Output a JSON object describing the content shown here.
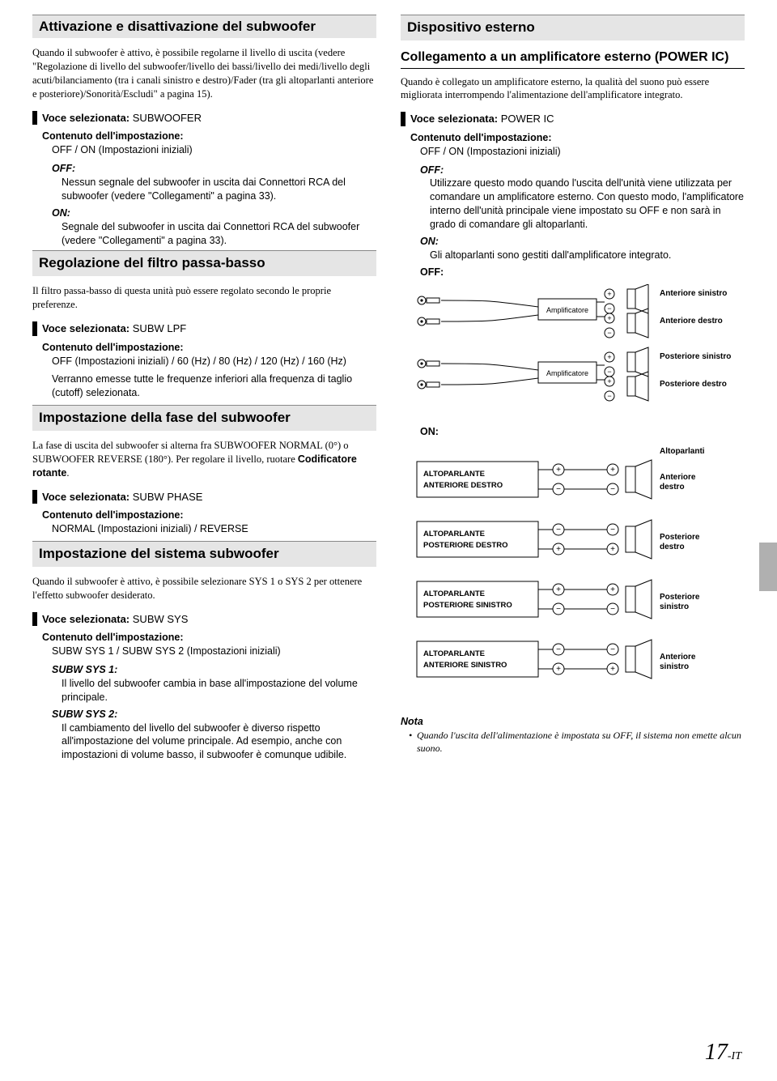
{
  "left": {
    "h1": "Attivazione e disattivazione del subwoofer",
    "p1": "Quando il subwoofer è attivo, è possibile regolarne il livello di uscita (vedere \"Regolazione di livello del subwoofer/livello dei bassi/livello dei medi/livello degli acuti/bilanciamento (tra i canali sinistro e destro)/Fader (tra gli altoparlanti anteriore e posteriore)/Sonorità/Escludi\" a pagina 15).",
    "v1": "Voce selezionata:",
    "v1name": "SUBWOOFER",
    "clabel": "Contenuto dell'impostazione:",
    "v1val": "OFF / ON (Impostazioni iniziali)",
    "off": "OFF:",
    "on": "ON:",
    "v1off": "Nessun segnale del subwoofer in uscita dai Connettori RCA del subwoofer (vedere \"Collegamenti\" a pagina 33).",
    "v1on": "Segnale del subwoofer in uscita dai Connettori RCA del subwoofer (vedere \"Collegamenti\" a pagina 33).",
    "h2": "Regolazione del filtro passa-basso",
    "p2": "Il filtro passa-basso di questa unità può essere regolato secondo le proprie preferenze.",
    "v2name": "SUBW LPF",
    "v2val": "OFF (Impostazioni iniziali) / 60 (Hz) / 80 (Hz) / 120 (Hz) / 160 (Hz)",
    "v2note": "Verranno emesse tutte le frequenze inferiori alla frequenza di taglio (cutoff) selezionata.",
    "h3": "Impostazione della fase del subwoofer",
    "p3a": "La fase di uscita del subwoofer si alterna fra SUBWOOFER NORMAL (0°) o SUBWOOFER REVERSE (180°). Per regolare il livello, ruotare ",
    "p3b": "Codificatore rotante",
    "v3name": "SUBW PHASE",
    "v3val": "NORMAL (Impostazioni iniziali) / REVERSE",
    "h4": "Impostazione del sistema subwoofer",
    "p4": "Quando il subwoofer è attivo, è possibile selezionare SYS 1 o SYS 2 per ottenere l'effetto subwoofer desiderato.",
    "v4name": "SUBW SYS",
    "v4val": "SUBW SYS 1 / SUBW SYS 2 (Impostazioni iniziali)",
    "v4a": "SUBW SYS 1:",
    "v4atext": "Il livello del subwoofer cambia in base all'impostazione del volume principale.",
    "v4b": "SUBW SYS 2:",
    "v4btext": "Il cambiamento del livello del subwoofer è diverso rispetto all'impostazione del volume principale. Ad esempio, anche con impostazioni di volume basso, il subwoofer è comunque udibile."
  },
  "right": {
    "h1": "Dispositivo esterno",
    "sub1": "Collegamento a un amplificatore esterno (POWER IC)",
    "p1": "Quando è collegato un amplificatore esterno, la qualità del suono può essere migliorata interrompendo l'alimentazione dell'amplificatore integrato.",
    "v1name": "POWER IC",
    "v1val": "OFF / ON (Impostazioni iniziali)",
    "v1off": "Utilizzare questo modo quando l'uscita dell'unità viene utilizzata per comandare un amplificatore esterno. Con questo modo, l'amplificatore interno dell'unità principale viene impostato su OFF e non sarà in grado di comandare gli altoparlanti.",
    "v1on": "Gli altoparlanti sono gestiti dall'amplificatore integrato.",
    "offlabel": "OFF:",
    "onlabel": "ON:",
    "nota": "Nota",
    "notatext": "Quando l'uscita dell'alimentazione è impostata su OFF, il sistema non emette alcun suono.",
    "diag_off": {
      "amp": "Amplificatore",
      "labels": [
        "Anteriore sinistro",
        "Anteriore destro",
        "Posteriore sinistro",
        "Posteriore destro"
      ]
    },
    "diag_on": {
      "spk_title": "Altoparlanti",
      "rows": [
        {
          "name": "ALTOPARLANTE ANTERIORE DESTRO",
          "out": "Anteriore destro",
          "top": "+",
          "bot": "-"
        },
        {
          "name": "ALTOPARLANTE POSTERIORE DESTRO",
          "out": "Posteriore destro",
          "top": "-",
          "bot": "+"
        },
        {
          "name": "ALTOPARLANTE POSTERIORE SINISTRO",
          "out": "Posteriore sinistro",
          "top": "+",
          "bot": "-"
        },
        {
          "name": "ALTOPARLANTE ANTERIORE SINISTRO",
          "out": "Anteriore sinistro",
          "top": "-",
          "bot": "+"
        }
      ]
    }
  },
  "page": {
    "num": "17",
    "suf": "-IT"
  }
}
